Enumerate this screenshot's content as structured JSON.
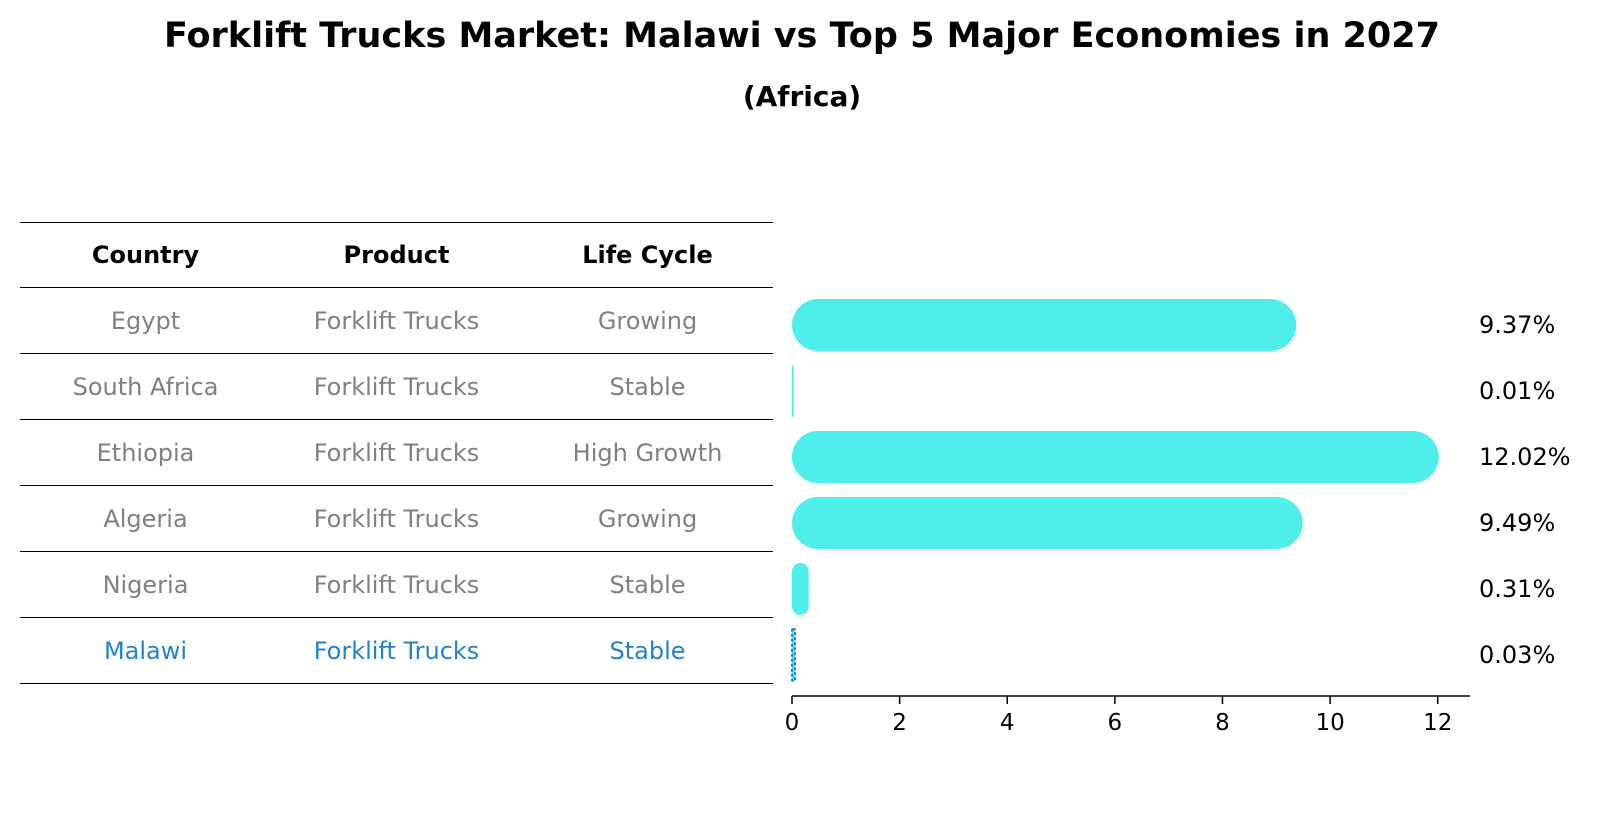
{
  "title": "Forklift Trucks Market: Malawi vs Top 5 Major Economies in 2027",
  "subtitle": "(Africa)",
  "table": {
    "headers": [
      "Country",
      "Product",
      "Life Cycle"
    ],
    "rows": [
      {
        "country": "Egypt",
        "product": "Forklift Trucks",
        "life_cycle": "Growing"
      },
      {
        "country": "South Africa",
        "product": "Forklift Trucks",
        "life_cycle": "Stable"
      },
      {
        "country": "Ethiopia",
        "product": "Forklift Trucks",
        "life_cycle": "High Growth"
      },
      {
        "country": "Algeria",
        "product": "Forklift Trucks",
        "life_cycle": "Growing"
      },
      {
        "country": "Nigeria",
        "product": "Forklift Trucks",
        "life_cycle": "Stable"
      },
      {
        "country": "Malawi",
        "product": "Forklift Trucks",
        "life_cycle": "Stable"
      }
    ]
  },
  "colors": {
    "bar": "#4eeeea",
    "highlight": "#1f82d0",
    "muted_text": "#808080"
  },
  "chart_data": {
    "type": "bar",
    "orientation": "horizontal",
    "categories": [
      "Egypt",
      "South Africa",
      "Ethiopia",
      "Algeria",
      "Nigeria",
      "Malawi"
    ],
    "values": [
      9.37,
      0.01,
      12.02,
      9.49,
      0.31,
      0.03
    ],
    "value_labels": [
      "9.37%",
      "0.01%",
      "12.02%",
      "9.49%",
      "0.31%",
      "0.03%"
    ],
    "xticks": [
      "0",
      "2",
      "4",
      "6",
      "8",
      "10",
      "12"
    ],
    "xlim": [
      0,
      12.6
    ],
    "highlight_category": "Malawi"
  }
}
